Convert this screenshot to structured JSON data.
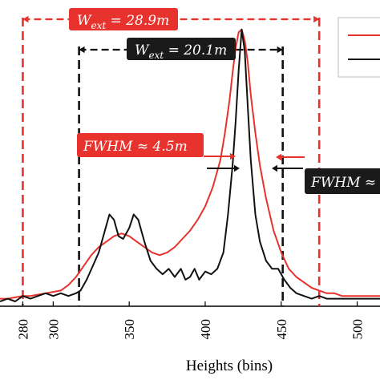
{
  "chart_data": {
    "type": "line",
    "xlabel": "Heights (bins)",
    "ylabel": "",
    "xlim": [
      265,
      515
    ],
    "ylim": [
      0,
      1.02
    ],
    "grid": false,
    "legend": {
      "placement": "top-right",
      "entries": [
        "",
        ""
      ]
    },
    "x_ticks": [
      "280",
      "300",
      "350",
      "400",
      "450",
      "500"
    ],
    "x_tick_values": [
      280,
      300,
      350,
      400,
      450,
      500
    ],
    "colors": {
      "red": "#e8322d",
      "black": "#111111",
      "label_bg_red": "#e8322d",
      "label_bg_black": "#1a1a1a"
    },
    "series": [
      {
        "color": "red",
        "x": [
          265,
          270,
          275,
          280,
          285,
          290,
          295,
          300,
          305,
          310,
          315,
          320,
          325,
          330,
          335,
          340,
          345,
          350,
          355,
          360,
          365,
          370,
          375,
          380,
          385,
          390,
          395,
          400,
          405,
          410,
          413,
          416,
          418,
          420,
          422,
          424,
          426,
          428,
          430,
          433,
          436,
          440,
          445,
          450,
          455,
          460,
          465,
          470,
          475,
          480,
          485,
          490,
          495,
          500,
          505,
          510,
          515
        ],
        "y": [
          0.01,
          0.01,
          0.015,
          0.02,
          0.02,
          0.025,
          0.03,
          0.035,
          0.04,
          0.06,
          0.09,
          0.13,
          0.17,
          0.2,
          0.22,
          0.24,
          0.25,
          0.24,
          0.22,
          0.2,
          0.18,
          0.17,
          0.18,
          0.2,
          0.23,
          0.26,
          0.3,
          0.35,
          0.42,
          0.52,
          0.62,
          0.74,
          0.84,
          0.93,
          0.99,
          1.0,
          0.96,
          0.88,
          0.76,
          0.62,
          0.5,
          0.38,
          0.26,
          0.18,
          0.12,
          0.09,
          0.07,
          0.05,
          0.04,
          0.03,
          0.03,
          0.02,
          0.02,
          0.02,
          0.02,
          0.02,
          0.02
        ]
      },
      {
        "color": "black",
        "x": [
          265,
          270,
          275,
          280,
          285,
          290,
          295,
          300,
          305,
          310,
          315,
          318,
          322,
          326,
          330,
          334,
          337,
          340,
          343,
          346,
          350,
          353,
          356,
          360,
          364,
          368,
          372,
          376,
          380,
          384,
          387,
          390,
          393,
          396,
          400,
          404,
          408,
          412,
          415,
          418,
          420,
          422,
          424,
          426,
          428,
          430,
          433,
          436,
          440,
          444,
          448,
          452,
          456,
          460,
          465,
          470,
          475,
          480,
          490,
          500,
          510,
          515
        ],
        "y": [
          0.0,
          0.01,
          0.0,
          0.02,
          0.01,
          0.02,
          0.03,
          0.02,
          0.03,
          0.02,
          0.03,
          0.04,
          0.08,
          0.13,
          0.18,
          0.26,
          0.32,
          0.3,
          0.24,
          0.23,
          0.27,
          0.32,
          0.3,
          0.22,
          0.15,
          0.12,
          0.1,
          0.12,
          0.09,
          0.12,
          0.08,
          0.09,
          0.12,
          0.08,
          0.11,
          0.1,
          0.12,
          0.18,
          0.32,
          0.5,
          0.66,
          0.85,
          1.0,
          0.92,
          0.72,
          0.52,
          0.32,
          0.22,
          0.15,
          0.12,
          0.12,
          0.08,
          0.05,
          0.03,
          0.02,
          0.01,
          0.02,
          0.01,
          0.01,
          0.01,
          0.01,
          0.01
        ]
      }
    ],
    "annotations": {
      "w_ext_red": {
        "text": "W_ext = 28.9m",
        "main": "W",
        "sub": "ext",
        "tail": " = 28.9m",
        "x_left": 280,
        "x_right": 475,
        "color": "red"
      },
      "w_ext_black": {
        "text": "W_ext = 20.1m",
        "main": "W",
        "sub": "ext",
        "tail": " = 20.1m",
        "x_left": 317,
        "x_right": 451,
        "color": "black"
      },
      "fwhm_red": {
        "text": "FWHM ≈ 4.5m",
        "color": "red",
        "arrow_from": 400,
        "arrow_to": 414,
        "arrow_y": 0.58
      },
      "fwhm_black": {
        "text": "FWHM ≈",
        "color": "black",
        "arrow_from_left": 405,
        "arrow_to_left": 418,
        "arrow_from_right": 445,
        "arrow_to_right": 432,
        "arrow_y": 0.52
      }
    }
  }
}
